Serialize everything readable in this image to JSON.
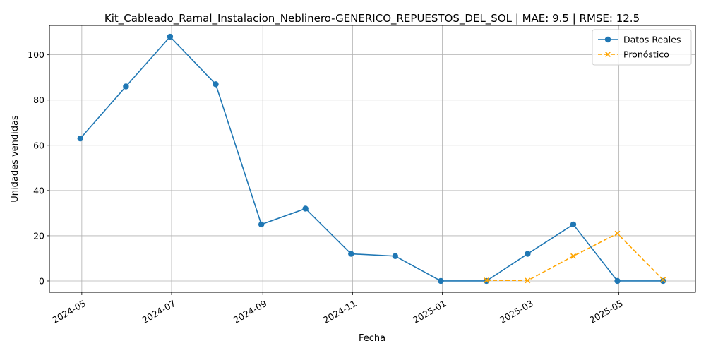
{
  "chart_data": {
    "type": "line",
    "title": "Kit_Cableado_Ramal_Instalacion_Neblinero-GENERICO_REPUESTOS_DEL_SOL | MAE: 9.5 | RMSE: 12.5",
    "xlabel": "Fecha",
    "ylabel": "Unidades vendidas",
    "xlim": [
      "2024-04-09",
      "2025-06-22"
    ],
    "ylim": [
      -5,
      113
    ],
    "x_ticks": [
      "2024-05",
      "2024-07",
      "2024-09",
      "2024-11",
      "2025-01",
      "2025-03",
      "2025-05"
    ],
    "y_ticks": [
      0,
      20,
      40,
      60,
      80,
      100
    ],
    "grid": true,
    "legend_position": "top-right",
    "series": [
      {
        "name": "Datos Reales",
        "color": "#1f77b4",
        "style": "solid",
        "marker": "circle",
        "points": [
          {
            "x": "2024-04-30",
            "y": 63
          },
          {
            "x": "2024-05-31",
            "y": 86
          },
          {
            "x": "2024-06-30",
            "y": 108
          },
          {
            "x": "2024-07-31",
            "y": 87
          },
          {
            "x": "2024-08-31",
            "y": 25
          },
          {
            "x": "2024-09-30",
            "y": 32
          },
          {
            "x": "2024-10-31",
            "y": 12
          },
          {
            "x": "2024-11-30",
            "y": 11
          },
          {
            "x": "2024-12-31",
            "y": 0
          },
          {
            "x": "2025-01-31",
            "y": 0
          },
          {
            "x": "2025-02-28",
            "y": 12
          },
          {
            "x": "2025-03-31",
            "y": 25
          },
          {
            "x": "2025-04-30",
            "y": 0
          },
          {
            "x": "2025-05-31",
            "y": 0
          }
        ]
      },
      {
        "name": "Pronóstico",
        "color": "#ffa500",
        "style": "dashed",
        "marker": "x",
        "points": [
          {
            "x": "2025-01-31",
            "y": 0.3
          },
          {
            "x": "2025-02-28",
            "y": 0.2
          },
          {
            "x": "2025-03-31",
            "y": 11
          },
          {
            "x": "2025-04-30",
            "y": 21
          },
          {
            "x": "2025-05-31",
            "y": 0.5
          }
        ]
      }
    ]
  }
}
